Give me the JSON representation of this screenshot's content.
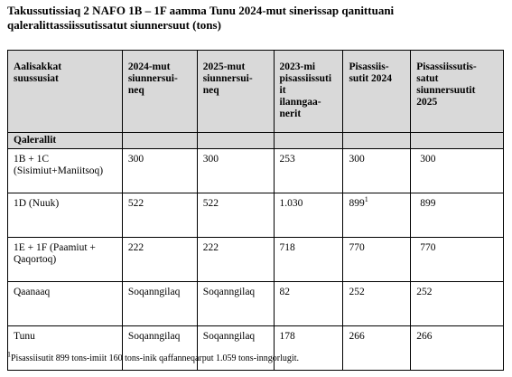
{
  "header": {
    "title": "Takussutissiaq 2 NAFO 1B – 1F aamma Tunu 2024-mut sinerissap qanittuani qaleralittassiissutissatut siunnersuut (tons)"
  },
  "table": {
    "columns": [
      "Aalisakkat\nsuussusiat",
      "2024-mut\nsiunnersui-\nneq",
      "2025-mut\nsiunnersui-\nneq",
      "2023-mi\npisassiissuti\nit\nilanngaa-\nnerit",
      "Pisassiis-\nsutit 2024",
      "Pisassiissutis-\nsatut\nsiunnersuutit\n2025"
    ],
    "section": "Qalerallit",
    "rows": [
      [
        "1B + 1C (Sisimiut+Maniitsoq)",
        "300",
        "300",
        "253",
        "300",
        "300"
      ],
      [
        "1D (Nuuk)",
        "522",
        "522",
        "1.030",
        "899",
        "899"
      ],
      [
        "1E + 1F (Paamiut + Qaqortoq)",
        "222",
        "222",
        "718",
        "770",
        "770"
      ],
      [
        "Qaanaaq",
        "Soqanngilaq",
        "Soqanngilaq",
        "82",
        "252",
        "252"
      ],
      [
        "Tunu",
        "Soqanngilaq",
        "Soqanngilaq",
        "178",
        "266",
        "266"
      ]
    ],
    "note_ref": "1"
  },
  "footnote": {
    "marker": "1",
    "text": "Pisassiisutit 899 tons-imiit 160 tons-inik qaffanneqarput 1.059 tons-inngorlugit."
  }
}
